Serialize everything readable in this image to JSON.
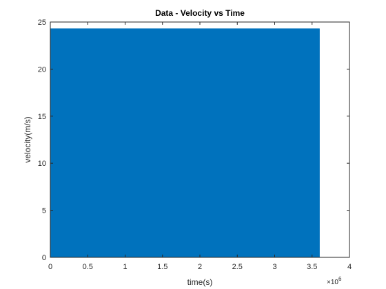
{
  "chart_data": {
    "type": "area",
    "title": "Data - Velocity vs Time",
    "xlabel": "time(s)",
    "ylabel": "velocity(m/s)",
    "x_multiplier": {
      "base": "10",
      "exponent": "6"
    },
    "xlim": [
      0,
      4
    ],
    "ylim": [
      0,
      25
    ],
    "xticks": [
      0,
      0.5,
      1,
      1.5,
      2,
      2.5,
      3,
      3.5,
      4
    ],
    "xtick_labels": [
      "0",
      "0.5",
      "1",
      "1.5",
      "2",
      "2.5",
      "3",
      "3.5",
      "4"
    ],
    "yticks": [
      0,
      5,
      10,
      15,
      20,
      25
    ],
    "ytick_labels": [
      "0",
      "5",
      "10",
      "15",
      "20",
      "25"
    ],
    "series": [
      {
        "x": [
          0,
          3.6
        ],
        "values": [
          24.3,
          24.3
        ],
        "color": "#0072BD"
      }
    ],
    "grid": false,
    "legend": "none"
  }
}
